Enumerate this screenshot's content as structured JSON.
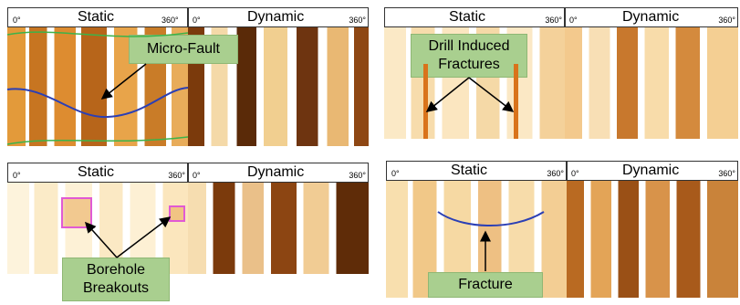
{
  "panels": [
    {
      "id": "micro-fault",
      "static_label": "Static",
      "dynamic_label": "Dynamic",
      "deg_start": "0°",
      "deg_end": "360°",
      "deg_start2": "0°",
      "deg_end2": "360°",
      "callout": "Micro-Fault"
    },
    {
      "id": "drill-induced",
      "static_label": "Static",
      "dynamic_label": "Dynamic",
      "deg_start": "0°",
      "deg_end": "360°",
      "deg_start2": "0°",
      "deg_end2": "360°",
      "callout": "Drill Induced Fractures"
    },
    {
      "id": "breakouts",
      "static_label": "Static",
      "dynamic_label": "Dynamic",
      "deg_start": "0°",
      "deg_end": "360°",
      "deg_start2": "0°",
      "deg_end2": "360°",
      "callout": "Borehole Breakouts"
    },
    {
      "id": "fracture",
      "static_label": "Static",
      "dynamic_label": "Dynamic",
      "deg_start": "0°",
      "deg_end": "360°",
      "deg_start2": "0°",
      "deg_end2": "360°",
      "callout": "Fracture"
    }
  ],
  "colors": {
    "light_image": "#f6e3bd",
    "mid_image": "#e7a03f",
    "dark_image": "#8a3d06",
    "pad_gap": "#ffffff",
    "fault_line": "#2b3fb5",
    "green_line": "#3cb34a",
    "callout_bg": "#a9cf8f",
    "breakout_box": "#e15ad4"
  }
}
